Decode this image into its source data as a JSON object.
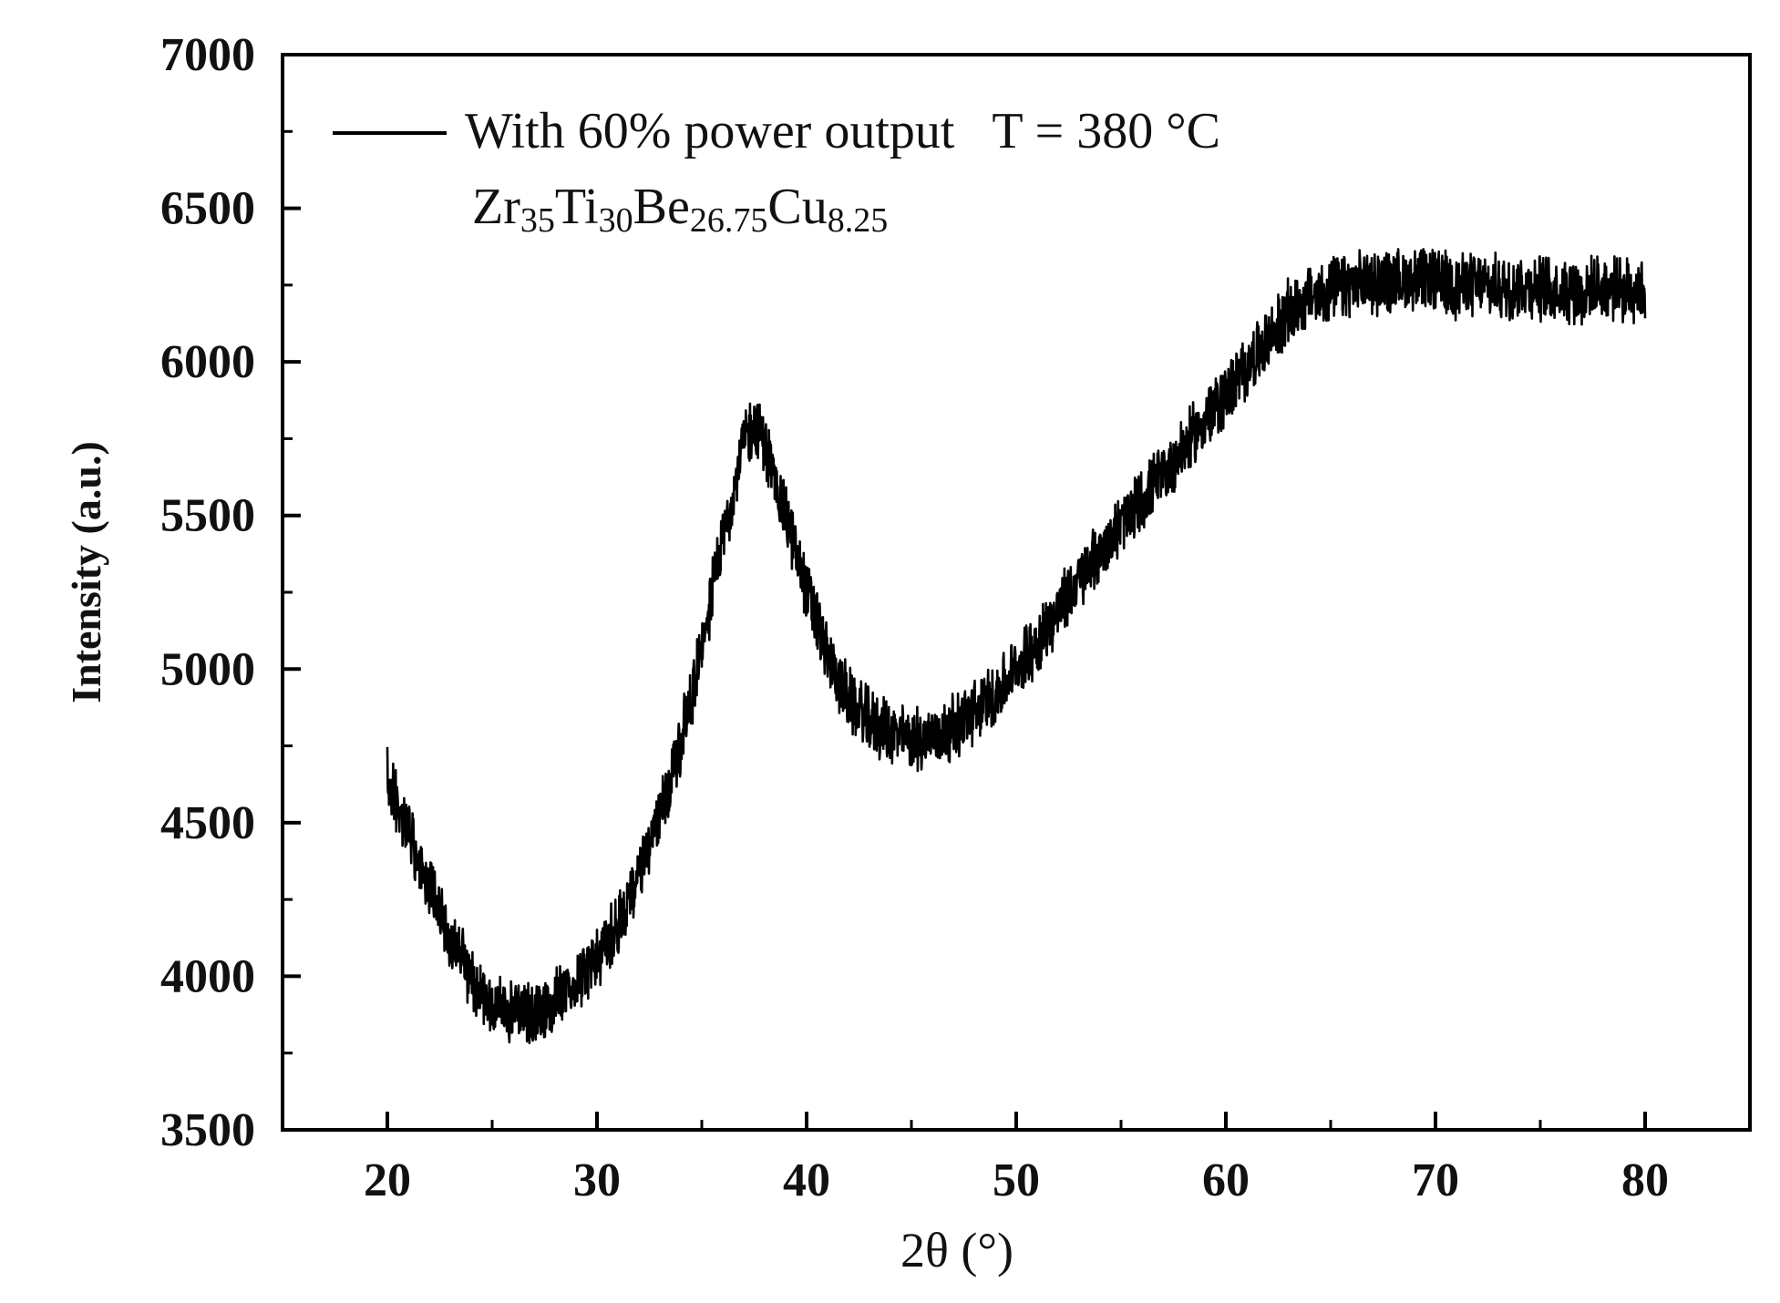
{
  "chart_data": {
    "type": "line",
    "title": "",
    "xlabel": "2θ (°)",
    "ylabel": "Intensity (a.u.)",
    "xlim": [
      15,
      85
    ],
    "ylim": [
      3500,
      7000
    ],
    "xticks": [
      "20",
      "30",
      "40",
      "50",
      "60",
      "70",
      "80"
    ],
    "yticks": [
      "3500",
      "4000",
      "4500",
      "5000",
      "5500",
      "6000",
      "6500",
      "7000"
    ],
    "legend": {
      "position": "top-left",
      "label": "With 60% power output   T = 380 °C"
    },
    "annotation": {
      "composition": [
        {
          "el": "Zr",
          "sub": "35"
        },
        {
          "el": "Ti",
          "sub": "30"
        },
        {
          "el": "Be",
          "sub": "26.75"
        },
        {
          "el": "Cu",
          "sub": "8.25"
        }
      ]
    },
    "series": [
      {
        "name": "With 60% power output   T = 380 °C",
        "color": "#000000",
        "x": [
          20,
          21,
          22,
          23,
          24,
          25,
          26,
          27,
          28,
          29,
          30,
          31,
          32,
          33,
          34,
          35,
          36,
          37,
          37.5,
          38,
          39,
          40,
          41,
          42,
          43,
          44,
          45,
          46,
          47,
          48,
          49,
          50,
          51,
          52,
          53,
          54,
          55,
          56,
          57,
          58,
          59,
          60,
          61,
          62,
          63,
          64,
          65,
          66,
          67,
          68,
          69,
          70,
          71,
          72,
          73,
          74,
          75,
          76,
          77,
          78,
          79,
          80
        ],
        "y": [
          4650,
          4470,
          4290,
          4130,
          3990,
          3910,
          3870,
          3880,
          3920,
          3980,
          4060,
          4170,
          4320,
          4520,
          4760,
          5080,
          5420,
          5740,
          5800,
          5730,
          5500,
          5260,
          5040,
          4900,
          4830,
          4790,
          4770,
          4780,
          4810,
          4860,
          4920,
          5000,
          5090,
          5190,
          5290,
          5380,
          5470,
          5550,
          5630,
          5720,
          5810,
          5890,
          5980,
          6070,
          6160,
          6210,
          6230,
          6250,
          6260,
          6260,
          6270,
          6260,
          6250,
          6250,
          6240,
          6250,
          6240,
          6240,
          6230,
          6240,
          6230,
          6240
        ],
        "noise_amplitude": 90
      }
    ]
  }
}
